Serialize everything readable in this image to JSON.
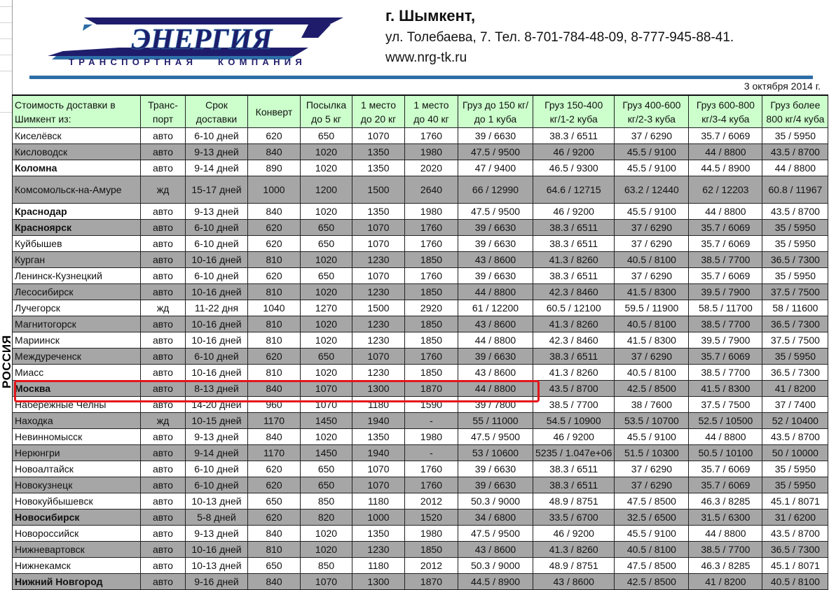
{
  "header": {
    "city": "г. Шымкент,",
    "address": "ул. Толебаева, 7. Тел. 8-701-784-48-09,  8-777-945-88-41.",
    "website": "www.nrg-tk.ru",
    "date": "3 октября 2014 г.",
    "logo_text": "ЭНЕРГИЯ",
    "logo_subtitle": "ТРАНСПОРТНАЯ   КОМПАНИЯ",
    "brand_color": "#1f1d6b",
    "accent_color": "#2e6ea8"
  },
  "region_label": "РОССИЯ",
  "highlight_color": "#e3161b",
  "table": {
    "columns": [
      "Стоимость доставки в Шимкент из:",
      "Транс-порт",
      "Срок доставки",
      "Конверт",
      "Посылка до 5 кг",
      "1 место до 20 кг",
      "1 место до 40 кг",
      "Груз до 150 кг/до 1 куба",
      "Груз 150-400 кг/1-2 куба",
      "Груз 400-600 кг/2-3 куба",
      "Груз 600-800 кг/3-4 куба",
      "Груз более 800 кг/4 куба"
    ],
    "rows": [
      {
        "cells": [
          "Киселёвск",
          "авто",
          "6-10 дней",
          "620",
          "650",
          "1070",
          "1760",
          "39 / 6630",
          "38.3 / 6511",
          "37 / 6290",
          "35.7 / 6069",
          "35 / 5950"
        ]
      },
      {
        "cells": [
          "Кисловодск",
          "авто",
          "9-13 дней",
          "840",
          "1020",
          "1350",
          "1980",
          "47.5 / 9500",
          "46 / 9200",
          "45.5 / 9100",
          "44 / 8800",
          "43.5 / 8700"
        ]
      },
      {
        "cells": [
          "Коломна",
          "авто",
          "9-14 дней",
          "890",
          "1020",
          "1350",
          "2020",
          "47 / 9400",
          "46.5 / 9300",
          "45.5 / 9100",
          "44.5 / 8900",
          "44 / 8800"
        ],
        "bold": true
      },
      {
        "cells": [
          "Комсомольск-на-Амуре",
          "жд",
          "15-17 дней",
          "1000",
          "1200",
          "1500",
          "2640",
          "66 / 12990",
          "64.6 / 12715",
          "63.2 / 12440",
          "62 / 12203",
          "60.8 / 11967"
        ],
        "tall": true
      },
      {
        "cells": [
          "Краснодар",
          "авто",
          "9-13 дней",
          "840",
          "1020",
          "1350",
          "1980",
          "47.5 / 9500",
          "46 / 9200",
          "45.5 / 9100",
          "44 / 8800",
          "43.5 / 8700"
        ],
        "bold": true
      },
      {
        "cells": [
          "Красноярск",
          "авто",
          "6-10 дней",
          "620",
          "650",
          "1070",
          "1760",
          "39 / 6630",
          "38.3 / 6511",
          "37 / 6290",
          "35.7 / 6069",
          "35 / 5950"
        ],
        "bold": true
      },
      {
        "cells": [
          "Куйбышев",
          "авто",
          "6-10 дней",
          "620",
          "650",
          "1070",
          "1760",
          "39 / 6630",
          "38.3 / 6511",
          "37 / 6290",
          "35.7 / 6069",
          "35 / 5950"
        ]
      },
      {
        "cells": [
          "Курган",
          "авто",
          "10-16 дней",
          "810",
          "1020",
          "1230",
          "1850",
          "43 / 8600",
          "41.3 / 8260",
          "40.5 / 8100",
          "38.5 / 7700",
          "36.5 / 7300"
        ]
      },
      {
        "cells": [
          "Ленинск-Кузнецкий",
          "авто",
          "6-10 дней",
          "620",
          "650",
          "1070",
          "1760",
          "39 / 6630",
          "38.3 / 6511",
          "37 / 6290",
          "35.7 / 6069",
          "35 / 5950"
        ]
      },
      {
        "cells": [
          "Лесосибирск",
          "авто",
          "10-16 дней",
          "810",
          "1020",
          "1230",
          "1850",
          "44 / 8800",
          "42.3 / 8460",
          "41.5 / 8300",
          "39.5 / 7900",
          "37.5 / 7500"
        ]
      },
      {
        "cells": [
          "Лучегорск",
          "жд",
          "11-22 дня",
          "1040",
          "1270",
          "1500",
          "2920",
          "61 / 12200",
          "60.5 / 12100",
          "59.5 / 11900",
          "58.5 / 11700",
          "58 / 11600"
        ]
      },
      {
        "cells": [
          "Магнитогорск",
          "авто",
          "10-16 дней",
          "810",
          "1020",
          "1230",
          "1850",
          "43 / 8600",
          "41.3 / 8260",
          "40.5 / 8100",
          "38.5 / 7700",
          "36.5 / 7300"
        ]
      },
      {
        "cells": [
          "Мариинск",
          "авто",
          "10-16 дней",
          "810",
          "1020",
          "1230",
          "1850",
          "44 / 8800",
          "42.3 / 8460",
          "41.5 / 8300",
          "39.5 / 7900",
          "37.5 / 7500"
        ]
      },
      {
        "cells": [
          "Междуреченск",
          "авто",
          "6-10 дней",
          "620",
          "650",
          "1070",
          "1760",
          "39 / 6630",
          "38.3 / 6511",
          "37 / 6290",
          "35.7 / 6069",
          "35 / 5950"
        ]
      },
      {
        "cells": [
          "Миасс",
          "авто",
          "10-16 дней",
          "810",
          "1020",
          "1230",
          "1850",
          "43 / 8600",
          "41.3 / 8260",
          "40.5 / 8100",
          "38.5 / 7700",
          "36.5 / 7300"
        ]
      },
      {
        "cells": [
          "Москва",
          "авто",
          "8-13 дней",
          "840",
          "1070",
          "1300",
          "1870",
          "44 / 8800",
          "43.5 / 8700",
          "42.5 / 8500",
          "41.5 / 8300",
          "41 / 8200"
        ],
        "bold": true,
        "highlighted": true
      },
      {
        "cells": [
          "Набережные Челны",
          "авто",
          "14-20 дней",
          "960",
          "1070",
          "1180",
          "1590",
          "39 / 7800",
          "38.5 / 7700",
          "38 / 7600",
          "37.5 / 7500",
          "37 / 7400"
        ]
      },
      {
        "cells": [
          "Находка",
          "жд",
          "10-15 дней",
          "1170",
          "1450",
          "1940",
          "-",
          "55 / 11000",
          "54.5 / 10900",
          "53.5 / 10700",
          "52.5 / 10500",
          "52 / 10400"
        ]
      },
      {
        "cells": [
          "Невинномысск",
          "авто",
          "9-13 дней",
          "840",
          "1020",
          "1350",
          "1980",
          "47.5 / 9500",
          "46 / 9200",
          "45.5 / 9100",
          "44 / 8800",
          "43.5 / 8700"
        ]
      },
      {
        "cells": [
          "Нерюнгри",
          "авто",
          "9-14 дней",
          "1170",
          "1450",
          "1940",
          "-",
          "53 / 10600",
          "5235 / 1.047e+06",
          "51.5 / 10300",
          "50.5 / 10100",
          "50 / 10000"
        ]
      },
      {
        "cells": [
          "Новоалтайск",
          "авто",
          "6-10 дней",
          "620",
          "650",
          "1070",
          "1760",
          "39 / 6630",
          "38.3 / 6511",
          "37 / 6290",
          "35.7 / 6069",
          "35 / 5950"
        ]
      },
      {
        "cells": [
          "Новокузнецк",
          "авто",
          "6-10 дней",
          "620",
          "650",
          "1070",
          "1760",
          "39 / 6630",
          "38.3 / 6511",
          "37 / 6290",
          "35.7 / 6069",
          "35 / 5950"
        ]
      },
      {
        "cells": [
          "Новокуйбышевск",
          "авто",
          "10-13 дней",
          "650",
          "850",
          "1180",
          "2012",
          "50.3 / 9000",
          "48.9 / 8751",
          "47.5 / 8500",
          "46.3 / 8285",
          "45.1 / 8071"
        ]
      },
      {
        "cells": [
          "Новосибирск",
          "авто",
          "5-8 дней",
          "620",
          "820",
          "1000",
          "1520",
          "34 / 6800",
          "33.5 / 6700",
          "32.5 / 6500",
          "31.5 / 6300",
          "31 / 6200"
        ],
        "bold": true
      },
      {
        "cells": [
          "Новороссийск",
          "авто",
          "9-13 дней",
          "840",
          "1020",
          "1350",
          "1980",
          "47.5 / 9500",
          "46 / 9200",
          "45.5 / 9100",
          "44 / 8800",
          "43.5 / 8700"
        ]
      },
      {
        "cells": [
          "Нижневартовск",
          "авто",
          "10-16 дней",
          "810",
          "1020",
          "1230",
          "1850",
          "43 / 8600",
          "41.3 / 8260",
          "40.5 / 8100",
          "38.5 / 7700",
          "36.5 / 7300"
        ]
      },
      {
        "cells": [
          "Нижнекамск",
          "авто",
          "10-13 дней",
          "650",
          "850",
          "1180",
          "2012",
          "50.3 / 9000",
          "48.9 / 8751",
          "47.5 / 8500",
          "46.3 / 8285",
          "45.1 / 8071"
        ]
      },
      {
        "cells": [
          "Нижний Новгород",
          "авто",
          "9-16 дней",
          "840",
          "1070",
          "1300",
          "1870",
          "44.5 / 8900",
          "43 / 8600",
          "42.5 / 8500",
          "41 / 8200",
          "40.5 / 8100"
        ],
        "bold": true
      }
    ]
  }
}
